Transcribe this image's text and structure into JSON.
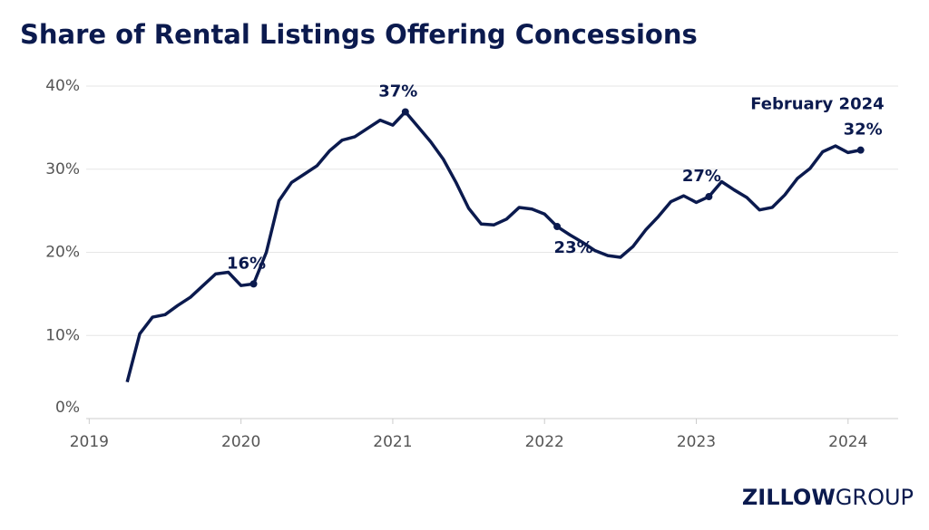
{
  "chart_data": {
    "type": "line",
    "title": "Share of Rental Listings Offering Concessions",
    "x": [
      2019.25,
      2019.333,
      2019.417,
      2019.5,
      2019.583,
      2019.667,
      2019.75,
      2019.833,
      2019.917,
      2020.0,
      2020.083,
      2020.167,
      2020.25,
      2020.333,
      2020.417,
      2020.5,
      2020.583,
      2020.667,
      2020.75,
      2020.833,
      2020.917,
      2021.0,
      2021.083,
      2021.167,
      2021.25,
      2021.333,
      2021.417,
      2021.5,
      2021.583,
      2021.667,
      2021.75,
      2021.833,
      2021.917,
      2022.0,
      2022.083,
      2022.167,
      2022.25,
      2022.333,
      2022.417,
      2022.5,
      2022.583,
      2022.667,
      2022.75,
      2022.833,
      2022.917,
      2023.0,
      2023.083,
      2023.167,
      2023.25,
      2023.333,
      2023.417,
      2023.5,
      2023.583,
      2023.667,
      2023.75,
      2023.833,
      2023.917,
      2024.0,
      2024.083
    ],
    "series": [
      {
        "color": "#0b1a4e",
        "values": [
          4.4,
          10.2,
          12.2,
          12.5,
          13.6,
          14.6,
          16.0,
          17.4,
          17.6,
          16.0,
          16.2,
          20.0,
          26.2,
          28.4,
          29.4,
          30.4,
          32.2,
          33.5,
          33.9,
          34.9,
          35.9,
          35.3,
          36.9,
          35.1,
          33.3,
          31.2,
          28.4,
          25.3,
          23.4,
          23.3,
          24.0,
          25.4,
          25.2,
          24.6,
          23.1,
          22.1,
          21.2,
          20.2,
          19.6,
          19.4,
          20.7,
          22.7,
          24.3,
          26.1,
          26.8,
          26.0,
          26.7,
          28.5,
          27.5,
          26.6,
          25.1,
          25.4,
          26.9,
          28.9,
          30.1,
          32.1,
          32.8,
          32.0,
          32.3
        ],
        "value_labels": [
          null,
          null,
          null,
          null,
          null,
          null,
          null,
          null,
          null,
          null,
          "16%",
          null,
          null,
          null,
          null,
          null,
          null,
          null,
          null,
          null,
          null,
          null,
          "37%",
          null,
          null,
          null,
          null,
          null,
          null,
          null,
          null,
          null,
          null,
          null,
          "23%",
          null,
          null,
          null,
          null,
          null,
          null,
          null,
          null,
          null,
          null,
          null,
          "27%",
          null,
          null,
          null,
          null,
          null,
          null,
          null,
          null,
          null,
          null,
          null,
          "32%"
        ]
      }
    ],
    "annotation": "February 2024",
    "xlim": [
      2018.98,
      2024.33
    ],
    "xticks": [
      2019,
      2020,
      2021,
      2022,
      2023,
      2024
    ],
    "ylim": [
      0,
      40
    ],
    "yticks": [
      {
        "value": 0,
        "label": "0%"
      },
      {
        "value": 10,
        "label": "10%"
      },
      {
        "value": 20,
        "label": "20%"
      },
      {
        "value": 30,
        "label": "30%"
      },
      {
        "value": 40,
        "label": "40%"
      }
    ],
    "grid": true,
    "logo": {
      "bold": "ZILLOW",
      "light": "GROUP"
    }
  }
}
